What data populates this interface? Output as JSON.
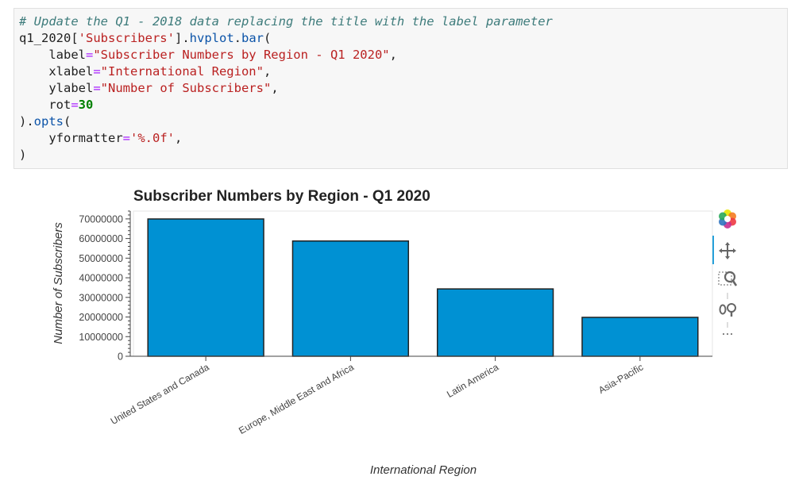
{
  "code": {
    "lines": [
      [
        {
          "t": "# Update the Q1 - 2018 data replacing the title with the label parameter",
          "c": "c-comment"
        }
      ],
      [
        {
          "t": "q1_2020[",
          "c": ""
        },
        {
          "t": "'Subscribers'",
          "c": "c-str"
        },
        {
          "t": "].",
          "c": ""
        },
        {
          "t": "hvplot",
          "c": "c-attr"
        },
        {
          "t": ".",
          "c": ""
        },
        {
          "t": "bar",
          "c": "c-attr"
        },
        {
          "t": "(",
          "c": ""
        }
      ],
      [
        {
          "t": "    label",
          "c": ""
        },
        {
          "t": "=",
          "c": "c-kw"
        },
        {
          "t": "\"Subscriber Numbers by Region - Q1 2020\"",
          "c": "c-str"
        },
        {
          "t": ",",
          "c": ""
        }
      ],
      [
        {
          "t": "    xlabel",
          "c": ""
        },
        {
          "t": "=",
          "c": "c-kw"
        },
        {
          "t": "\"International Region\"",
          "c": "c-str"
        },
        {
          "t": ",",
          "c": ""
        }
      ],
      [
        {
          "t": "    ylabel",
          "c": ""
        },
        {
          "t": "=",
          "c": "c-kw"
        },
        {
          "t": "\"Number of Subscribers\"",
          "c": "c-str"
        },
        {
          "t": ",",
          "c": ""
        }
      ],
      [
        {
          "t": "    rot",
          "c": ""
        },
        {
          "t": "=",
          "c": "c-kw"
        },
        {
          "t": "30",
          "c": "c-num"
        }
      ],
      [
        {
          "t": ").",
          "c": ""
        },
        {
          "t": "opts",
          "c": "c-attr"
        },
        {
          "t": "(",
          "c": ""
        }
      ],
      [
        {
          "t": "    yformatter",
          "c": ""
        },
        {
          "t": "=",
          "c": "c-kw"
        },
        {
          "t": "'%.0f'",
          "c": "c-str"
        },
        {
          "t": ",",
          "c": ""
        }
      ],
      [
        {
          "t": ")",
          "c": ""
        }
      ]
    ]
  },
  "chart_data": {
    "type": "bar",
    "title": "Subscriber Numbers by Region - Q1 2020",
    "xlabel": "International Region",
    "ylabel": "Number of Subscribers",
    "categories": [
      "United States and Canada",
      "Europe, Middle East and Africa",
      "Latin America",
      "Asia-Pacific"
    ],
    "values": [
      69970000,
      58730000,
      34320000,
      19830000
    ],
    "ylim": [
      0,
      74000000
    ],
    "yticks": [
      0,
      10000000,
      20000000,
      30000000,
      40000000,
      50000000,
      60000000,
      70000000
    ],
    "ytick_labels": [
      "0",
      "10000000",
      "20000000",
      "30000000",
      "40000000",
      "50000000",
      "60000000",
      "70000000"
    ],
    "bar_color": "#0091d3",
    "grid": false,
    "xtick_rotation": 30
  },
  "toolbar": {
    "icons": [
      "bokeh-logo-icon",
      "pan-icon",
      "box-zoom-icon",
      "wheel-zoom-icon",
      "more-icon"
    ]
  }
}
